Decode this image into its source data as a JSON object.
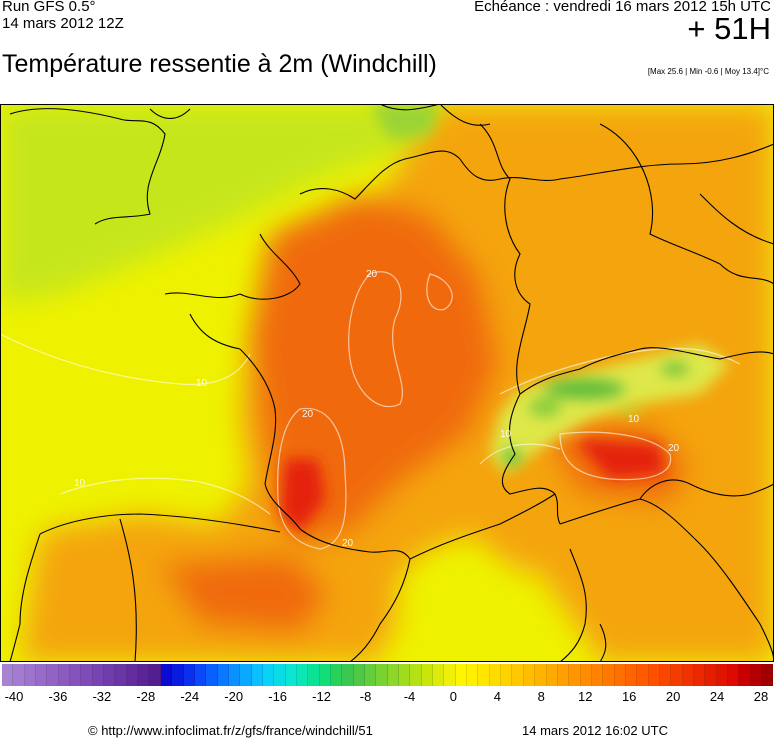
{
  "header": {
    "run": "Run GFS 0.5°",
    "run_date": "14 mars 2012 12Z",
    "valid_time": "Echéance : vendredi 16 mars 2012 15h UTC",
    "lead": "+ 51H",
    "title": "Température ressentie à 2m (Windchill)",
    "stats": "[Max 25.6 | Min -0.6 | Moy 13.4]°C"
  },
  "map": {
    "contour_labels": [
      "20",
      "20",
      "20",
      "20",
      "10",
      "10",
      "10",
      "10"
    ],
    "colors": {
      "ocean_yellow": "#eef200",
      "light_green": "#c6e61e",
      "orange": "#f4a411",
      "deep_orange": "#f06b0d",
      "red": "#e5240c",
      "green": "#48b43a",
      "border": "#000000",
      "contour": "#ffffff"
    }
  },
  "scale": {
    "colors": [
      "#a883d2",
      "#a37bcf",
      "#9d73cc",
      "#976bc8",
      "#9163c4",
      "#8b5bc0",
      "#8553bb",
      "#7f4bb6",
      "#7844b1",
      "#713cab",
      "#6a35a5",
      "#632d9e",
      "#5c2597",
      "#551e90",
      "#0a0ad2",
      "#0a1be0",
      "#0a30ee",
      "#0a48fa",
      "#0a60ff",
      "#0a78ff",
      "#0a90ff",
      "#0aa8ff",
      "#0ac0ff",
      "#0ad2f5",
      "#0adce6",
      "#0ae6d2",
      "#0ae6b4",
      "#0ae296",
      "#14dc78",
      "#28d25a",
      "#3cc850",
      "#50c846",
      "#64cd3c",
      "#78d232",
      "#8cd728",
      "#a0dc1e",
      "#b4e114",
      "#c8e60a",
      "#dceb0a",
      "#eef00a",
      "#fff500",
      "#fff000",
      "#ffe600",
      "#ffdc00",
      "#ffd200",
      "#ffc800",
      "#ffbe00",
      "#ffb400",
      "#ffaa00",
      "#ffa000",
      "#ff9600",
      "#ff8c00",
      "#ff8200",
      "#ff7800",
      "#ff6e00",
      "#ff6400",
      "#ff5a00",
      "#ff5000",
      "#fa4600",
      "#f53c00",
      "#f03200",
      "#eb2800",
      "#e61e00",
      "#e11400",
      "#dc0a00",
      "#c80000",
      "#b40000",
      "#a00000"
    ],
    "labels": [
      "-40",
      "-36",
      "-32",
      "-28",
      "-24",
      "-20",
      "-16",
      "-12",
      "-8",
      "-4",
      "0",
      "4",
      "8",
      "12",
      "16",
      "20",
      "24",
      "28"
    ]
  },
  "footer": {
    "url": "© http://www.infoclimat.fr/z/gfs/france/windchill/51",
    "time": "14 mars 2012 16:02 UTC"
  }
}
